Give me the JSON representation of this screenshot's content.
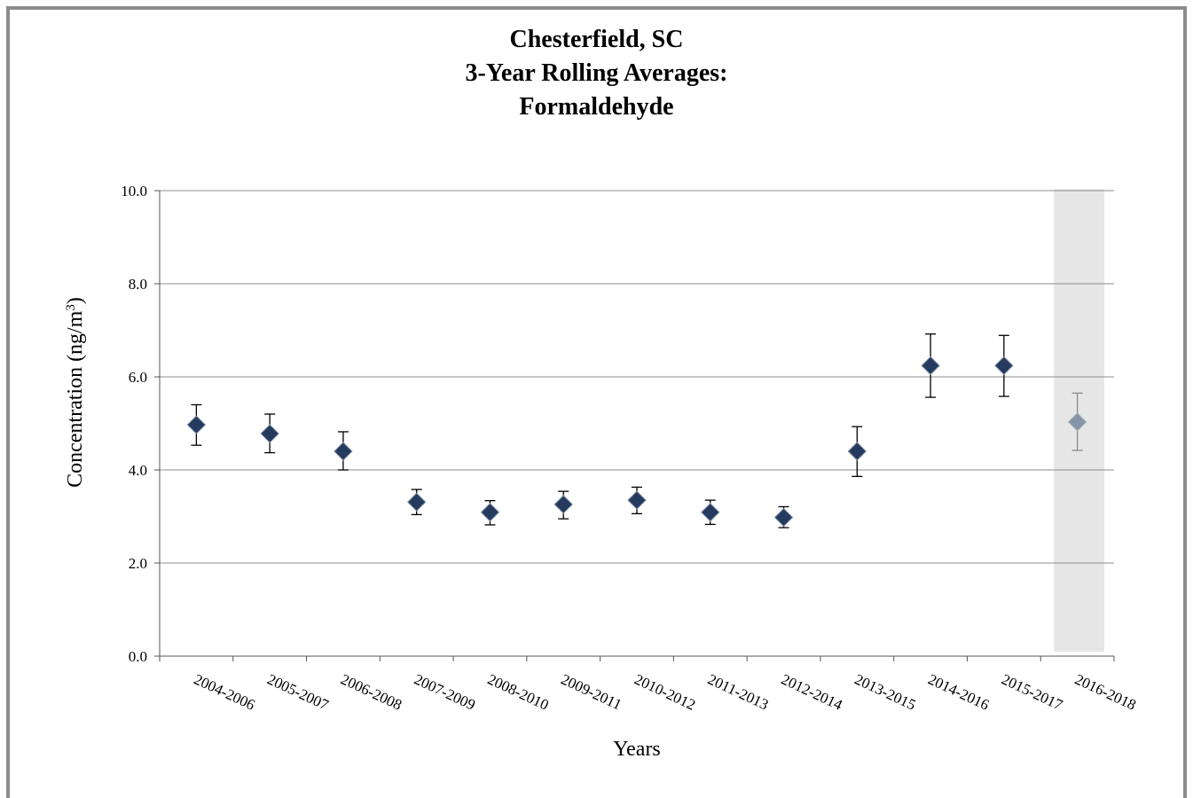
{
  "chart_data": {
    "type": "scatter",
    "title_lines": [
      "Chesterfield, SC",
      "3-Year Rolling Averages:",
      "Formaldehyde"
    ],
    "xlabel": "Years",
    "ylabel": "Concentration (ng/m",
    "ylabel_sup": "3",
    "ylabel_close": ")",
    "ylim": [
      0,
      10
    ],
    "yticks": [
      "0.0",
      "2.0",
      "4.0",
      "6.0",
      "8.0",
      "10.0"
    ],
    "grid": true,
    "categories": [
      "2004-2006",
      "2005-2007",
      "2006-2008",
      "2007-2009",
      "2008-2010",
      "2009-2011",
      "2010-2012",
      "2011-2013",
      "2012-2014",
      "2013-2015",
      "2014-2016",
      "2015-2017",
      "2016-2018"
    ],
    "series": [
      {
        "values": [
          4.97,
          4.78,
          4.4,
          3.31,
          3.09,
          3.26,
          3.35,
          3.09,
          2.98,
          4.4,
          6.24,
          6.24,
          5.03
        ],
        "error_low": [
          4.53,
          4.37,
          4.0,
          3.04,
          2.82,
          2.95,
          3.06,
          2.83,
          2.76,
          3.86,
          5.56,
          5.58,
          4.42
        ],
        "error_high": [
          5.4,
          5.2,
          4.82,
          3.58,
          3.34,
          3.54,
          3.63,
          3.35,
          3.21,
          4.93,
          6.92,
          6.89,
          5.65
        ]
      }
    ],
    "colors": {
      "marker": "#243a5e",
      "marker_highlight": "#8594a6",
      "shade": "#e6e6e6",
      "grid": "#8c8c8c"
    },
    "highlighted_category": "2016-2018"
  }
}
